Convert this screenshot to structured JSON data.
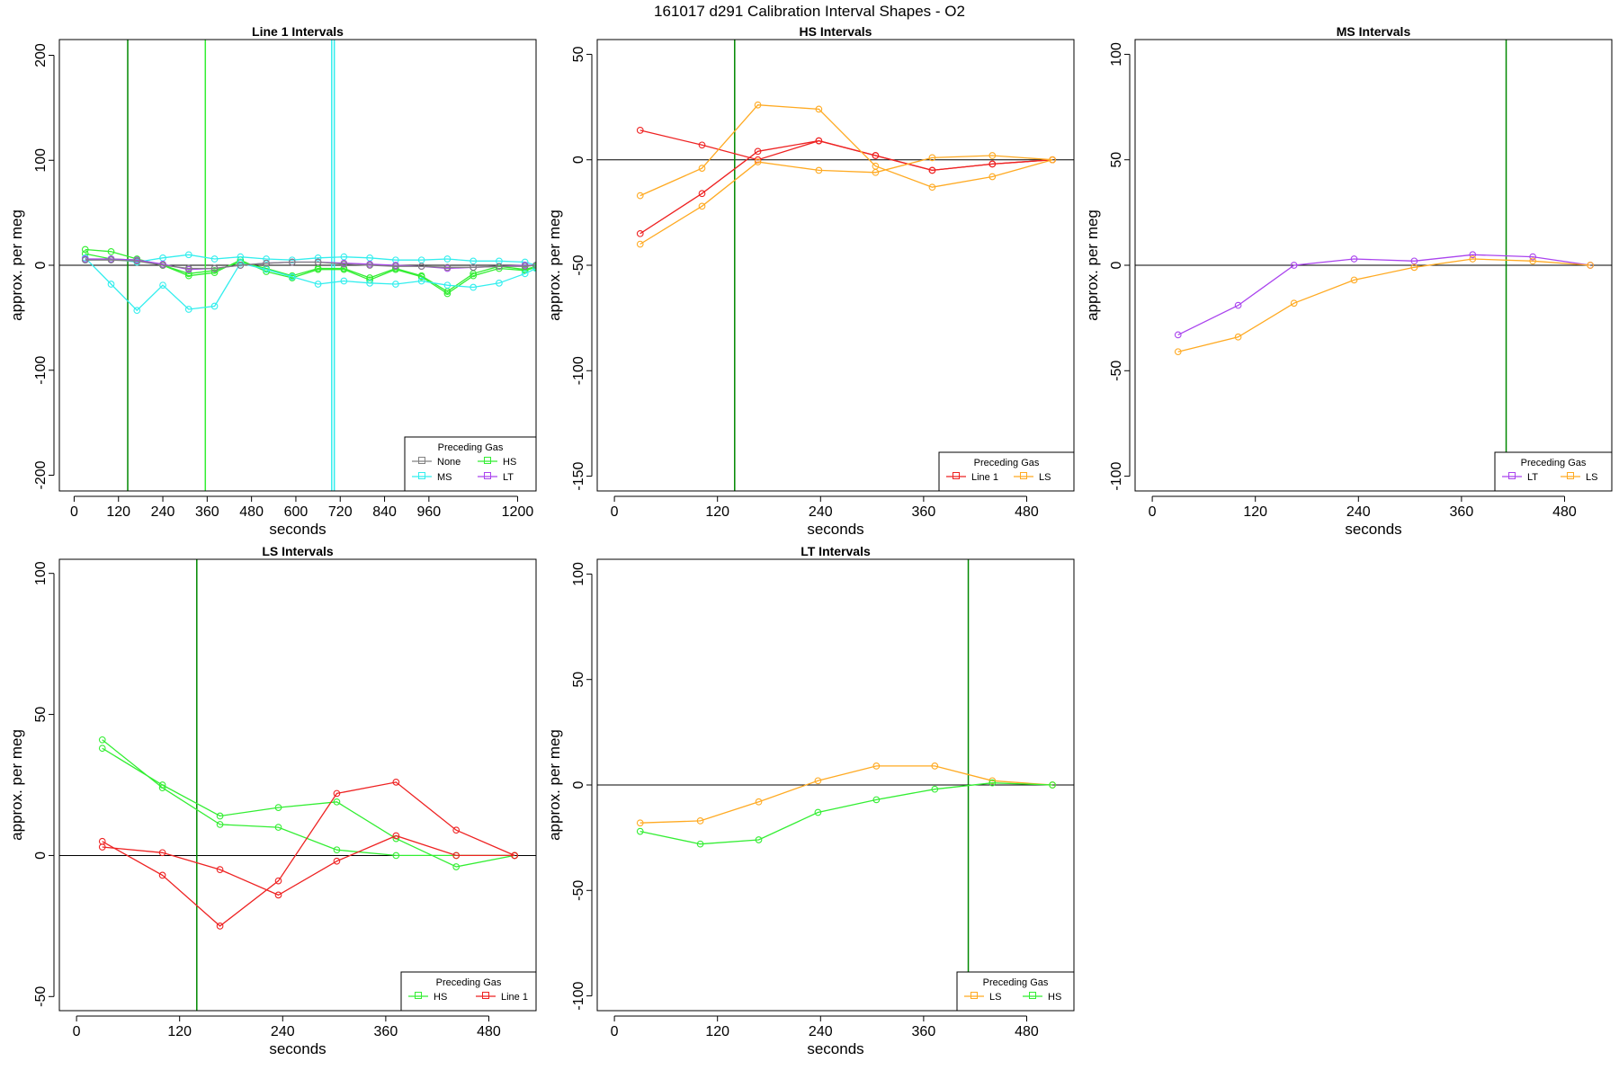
{
  "page_title": "161017   d291   Calibration Interval Shapes - O2",
  "legend_title": "Preceding Gas",
  "colors": {
    "none": "#808080",
    "hs": "#33ee33",
    "ms": "#33eeee",
    "lt": "#aa44ee",
    "ls": "#ffaa22",
    "line1": "#ee2222",
    "marker": "#008800",
    "axis": "#000000"
  },
  "chart_data": [
    {
      "type": "line",
      "title": "Line 1 Intervals",
      "xlabel": "seconds",
      "ylabel": "approx. per meg",
      "xlim": [
        -40,
        1250
      ],
      "ylim": [
        -215,
        215
      ],
      "xticks": [
        0,
        120,
        240,
        360,
        480,
        600,
        720,
        840,
        960,
        1200
      ],
      "xtick_labels": [
        "0",
        "120",
        "240",
        "360",
        "480",
        "600",
        "720",
        "840",
        "960",
        "1200"
      ],
      "yticks": [
        -200,
        -100,
        0,
        100,
        200
      ],
      "ytick_labels": [
        "-200",
        "-100",
        "0",
        "100",
        "200"
      ],
      "hline": 0,
      "vlines": [
        {
          "x": 145,
          "color": "marker"
        },
        {
          "x": 355,
          "color": "hs"
        },
        {
          "x": 697,
          "color": "ms"
        },
        {
          "x": 704,
          "color": "ms"
        }
      ],
      "legend": {
        "position": "bottomright",
        "cols": 2,
        "items": [
          {
            "label": "None",
            "color": "none"
          },
          {
            "label": "HS",
            "color": "hs"
          },
          {
            "label": "MS",
            "color": "ms"
          },
          {
            "label": "LT",
            "color": "lt"
          }
        ]
      },
      "series": [
        {
          "color": "hs",
          "x": [
            30,
            100,
            170,
            240,
            310,
            380,
            450,
            520,
            590,
            660,
            730,
            800,
            870,
            940,
            1010,
            1080,
            1150,
            1220,
            1250
          ],
          "y": [
            15,
            13,
            6,
            0,
            -10,
            -7,
            5,
            -6,
            -12,
            -4,
            -4,
            -14,
            -4,
            -11,
            -27,
            -10,
            -3,
            -5,
            -2
          ]
        },
        {
          "color": "hs",
          "x": [
            30,
            100,
            170,
            240,
            310,
            380,
            450,
            520,
            590,
            660,
            730,
            800,
            870,
            940,
            1010,
            1080,
            1150,
            1220,
            1250
          ],
          "y": [
            11,
            6,
            5,
            0,
            -8,
            -5,
            3,
            -3,
            -10,
            -3,
            -3,
            -12,
            -3,
            -10,
            -25,
            -8,
            -1,
            -4,
            -1
          ]
        },
        {
          "color": "ms",
          "x": [
            30,
            100,
            170,
            240,
            310,
            380,
            450,
            520,
            590,
            660,
            730,
            800,
            870,
            940,
            1010,
            1080,
            1150,
            1220,
            1250
          ],
          "y": [
            7,
            -18,
            -43,
            -19,
            -42,
            -39,
            2,
            -4,
            -11,
            -18,
            -15,
            -17,
            -18,
            -15,
            -19,
            -21,
            -17,
            -8,
            -3
          ]
        },
        {
          "color": "ms",
          "x": [
            30,
            100,
            170,
            240,
            310,
            380,
            450,
            520,
            590,
            660,
            730,
            800,
            870,
            940,
            1010,
            1080,
            1150,
            1220,
            1250
          ],
          "y": [
            5,
            6,
            3,
            7,
            10,
            6,
            8,
            6,
            5,
            7,
            8,
            7,
            5,
            5,
            6,
            4,
            4,
            3,
            0
          ]
        },
        {
          "color": "lt",
          "x": [
            30,
            100,
            170,
            240,
            310,
            380,
            450,
            520,
            590,
            660,
            730,
            800,
            870,
            940,
            1010,
            1080,
            1150,
            1220,
            1250
          ],
          "y": [
            6,
            6,
            5,
            1,
            -4,
            -3,
            0,
            2,
            3,
            3,
            2,
            1,
            0,
            -1,
            -3,
            -2,
            -1,
            0,
            0
          ]
        },
        {
          "color": "none",
          "x": [
            30,
            100,
            170,
            240,
            310,
            380,
            450,
            520,
            590,
            660,
            730,
            800,
            870,
            940,
            1010,
            1080,
            1150,
            1220,
            1250
          ],
          "y": [
            5,
            5,
            4,
            0,
            -3,
            -3,
            0,
            2,
            3,
            3,
            1,
            0,
            -1,
            -1,
            -2,
            -2,
            -1,
            -1,
            0
          ]
        }
      ]
    },
    {
      "type": "line",
      "title": "HS Intervals",
      "xlabel": "seconds",
      "ylabel": "approx. per meg",
      "xlim": [
        -20,
        535
      ],
      "ylim": [
        -157,
        57
      ],
      "xticks": [
        0,
        120,
        240,
        360,
        480
      ],
      "xtick_labels": [
        "0",
        "120",
        "240",
        "360",
        "480"
      ],
      "yticks": [
        -150,
        -100,
        -50,
        0,
        50
      ],
      "ytick_labels": [
        "-150",
        "-100",
        "-50",
        "0",
        "50"
      ],
      "hline": 0,
      "vlines": [
        {
          "x": 140,
          "color": "marker"
        }
      ],
      "legend": {
        "position": "bottomright",
        "cols": 2,
        "items": [
          {
            "label": "Line 1",
            "color": "line1"
          },
          {
            "label": "LS",
            "color": "ls"
          }
        ]
      },
      "series": [
        {
          "color": "line1",
          "x": [
            30,
            102,
            167,
            238,
            304,
            370,
            440,
            510
          ],
          "y": [
            14,
            7,
            0,
            9,
            2,
            -5,
            -2,
            0
          ]
        },
        {
          "color": "line1",
          "x": [
            30,
            102,
            167,
            238,
            304,
            370,
            440,
            510
          ],
          "y": [
            -35,
            -16,
            4,
            9,
            2,
            -5,
            -2,
            0
          ]
        },
        {
          "color": "ls",
          "x": [
            30,
            102,
            167,
            238,
            304,
            370,
            440,
            510
          ],
          "y": [
            -17,
            -4,
            26,
            24,
            -3,
            -13,
            -8,
            0
          ]
        },
        {
          "color": "ls",
          "x": [
            30,
            102,
            167,
            238,
            304,
            370,
            440,
            510
          ],
          "y": [
            -40,
            -22,
            -1,
            -5,
            -6,
            1,
            2,
            0
          ]
        }
      ]
    },
    {
      "type": "line",
      "title": "MS Intervals",
      "xlabel": "seconds",
      "ylabel": "approx. per meg",
      "xlim": [
        -20,
        535
      ],
      "ylim": [
        -107,
        107
      ],
      "xticks": [
        0,
        120,
        240,
        360,
        480
      ],
      "xtick_labels": [
        "0",
        "120",
        "240",
        "360",
        "480"
      ],
      "yticks": [
        -100,
        -50,
        0,
        50,
        100
      ],
      "ytick_labels": [
        "-100",
        "-50",
        "0",
        "50",
        "100"
      ],
      "hline": 0,
      "vlines": [
        {
          "x": 412,
          "color": "marker"
        }
      ],
      "legend": {
        "position": "bottomright",
        "cols": 2,
        "items": [
          {
            "label": "LT",
            "color": "lt"
          },
          {
            "label": "LS",
            "color": "ls"
          }
        ]
      },
      "series": [
        {
          "color": "lt",
          "x": [
            30,
            100,
            165,
            235,
            305,
            373,
            443,
            510
          ],
          "y": [
            -33,
            -19,
            0,
            3,
            2,
            5,
            4,
            0
          ]
        },
        {
          "color": "ls",
          "x": [
            30,
            100,
            165,
            235,
            305,
            373,
            443,
            510
          ],
          "y": [
            -41,
            -34,
            -18,
            -7,
            -1,
            3,
            2,
            0
          ]
        }
      ]
    },
    {
      "type": "line",
      "title": "LS Intervals",
      "xlabel": "seconds",
      "ylabel": "approx. per meg",
      "xlim": [
        -20,
        535
      ],
      "ylim": [
        -55,
        105
      ],
      "xticks": [
        0,
        120,
        240,
        360,
        480
      ],
      "xtick_labels": [
        "0",
        "120",
        "240",
        "360",
        "480"
      ],
      "yticks": [
        -50,
        0,
        50,
        100
      ],
      "ytick_labels": [
        "-50",
        "0",
        "50",
        "100"
      ],
      "hline": 0,
      "vlines": [
        {
          "x": 140,
          "color": "marker"
        }
      ],
      "legend": {
        "position": "bottomright",
        "cols": 2,
        "items": [
          {
            "label": "HS",
            "color": "hs"
          },
          {
            "label": "Line 1",
            "color": "line1"
          }
        ]
      },
      "series": [
        {
          "color": "hs",
          "x": [
            30,
            100,
            167,
            235,
            303,
            372,
            442,
            510
          ],
          "y": [
            41,
            24,
            11,
            10,
            2,
            0,
            0,
            0
          ]
        },
        {
          "color": "hs",
          "x": [
            30,
            100,
            167,
            235,
            303,
            372,
            442,
            510
          ],
          "y": [
            38,
            25,
            14,
            17,
            19,
            6,
            -4,
            0
          ]
        },
        {
          "color": "line1",
          "x": [
            30,
            100,
            167,
            235,
            303,
            372,
            442,
            510
          ],
          "y": [
            5,
            -7,
            -25,
            -9,
            22,
            26,
            9,
            0
          ]
        },
        {
          "color": "line1",
          "x": [
            30,
            100,
            167,
            235,
            303,
            372,
            442,
            510
          ],
          "y": [
            3,
            1,
            -5,
            -14,
            -2,
            7,
            0,
            0
          ]
        }
      ]
    },
    {
      "type": "line",
      "title": "LT Intervals",
      "xlabel": "seconds",
      "ylabel": "approx. per meg",
      "xlim": [
        -20,
        535
      ],
      "ylim": [
        -107,
        107
      ],
      "xticks": [
        0,
        120,
        240,
        360,
        480
      ],
      "xtick_labels": [
        "0",
        "120",
        "240",
        "360",
        "480"
      ],
      "yticks": [
        -100,
        -50,
        0,
        50,
        100
      ],
      "ytick_labels": [
        "-100",
        "-50",
        "0",
        "50",
        "100"
      ],
      "hline": 0,
      "vlines": [
        {
          "x": 412,
          "color": "marker"
        }
      ],
      "legend": {
        "position": "bottomright",
        "cols": 2,
        "items": [
          {
            "label": "LS",
            "color": "ls"
          },
          {
            "label": "HS",
            "color": "hs"
          }
        ]
      },
      "series": [
        {
          "color": "ls",
          "x": [
            30,
            100,
            168,
            237,
            305,
            373,
            440,
            510
          ],
          "y": [
            -18,
            -17,
            -8,
            2,
            9,
            9,
            2,
            0
          ]
        },
        {
          "color": "hs",
          "x": [
            30,
            100,
            168,
            237,
            305,
            373,
            440,
            510
          ],
          "y": [
            -22,
            -28,
            -26,
            -13,
            -7,
            -2,
            1,
            0
          ]
        }
      ]
    }
  ]
}
